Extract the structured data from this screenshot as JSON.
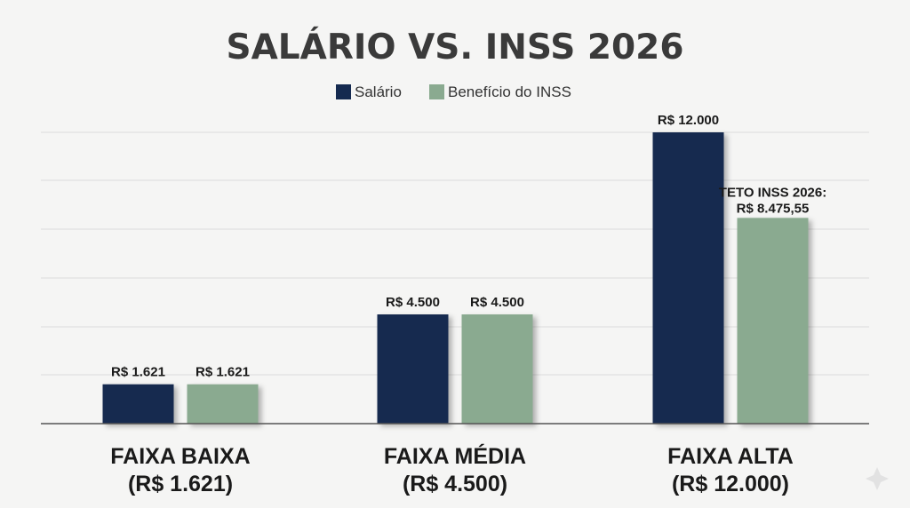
{
  "chart_data": {
    "type": "bar",
    "title": "SALÁRIO VS. INSS 2026",
    "series": [
      {
        "name": "Salário",
        "color": "#152a50",
        "values": [
          1621,
          4500,
          12000
        ],
        "labels": [
          "R$ 1.621",
          "R$ 4.500",
          "R$ 12.000"
        ]
      },
      {
        "name": "Benefício do INSS",
        "color": "#8aaa90",
        "values": [
          1621,
          4500,
          8475.55
        ],
        "labels": [
          "R$ 1.621",
          "R$ 4.500",
          "R$ 8.475,55"
        ]
      }
    ],
    "categories": [
      {
        "line1": "FAIXA BAIXA",
        "line2": "(R$ 1.621)"
      },
      {
        "line1": "FAIXA MÉDIA",
        "line2": "(R$ 4.500)"
      },
      {
        "line1": "FAIXA ALTA",
        "line2": "(R$ 12.000)"
      }
    ],
    "annotation": {
      "line1": "TETO INSS 2026:",
      "line2": "R$ 8.475,55"
    },
    "ylim": [
      0,
      12000
    ],
    "grid": true,
    "legend_position": "top-center"
  }
}
